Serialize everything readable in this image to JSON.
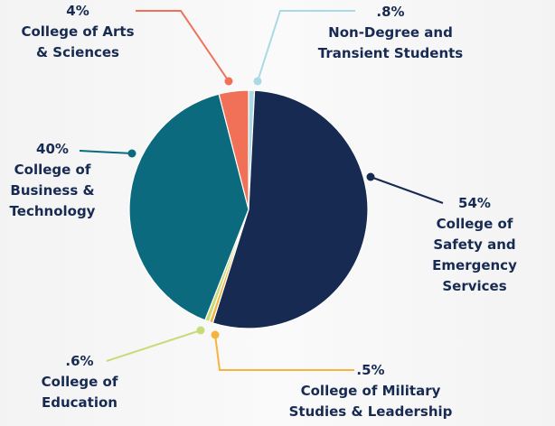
{
  "chart_data": {
    "type": "pie",
    "categories": [
      "Non-Degree and\nTransient Students",
      "College of Safety and\nEmergency Services",
      "College of Military\nStudies & Leadership",
      "College of\nEducation",
      "College of\nBusiness &\nTechnology",
      "College of Arts\n& Sciences"
    ],
    "values": [
      0.8,
      54,
      0.5,
      0.6,
      40,
      4
    ],
    "value_labels": [
      ".8%",
      "54%",
      ".5%",
      ".6%",
      "40%",
      "4%"
    ],
    "colors": [
      "#a9d9e2",
      "#172a52",
      "#f5b43f",
      "#c6dc78",
      "#0b6a7d",
      "#f07157"
    ]
  }
}
